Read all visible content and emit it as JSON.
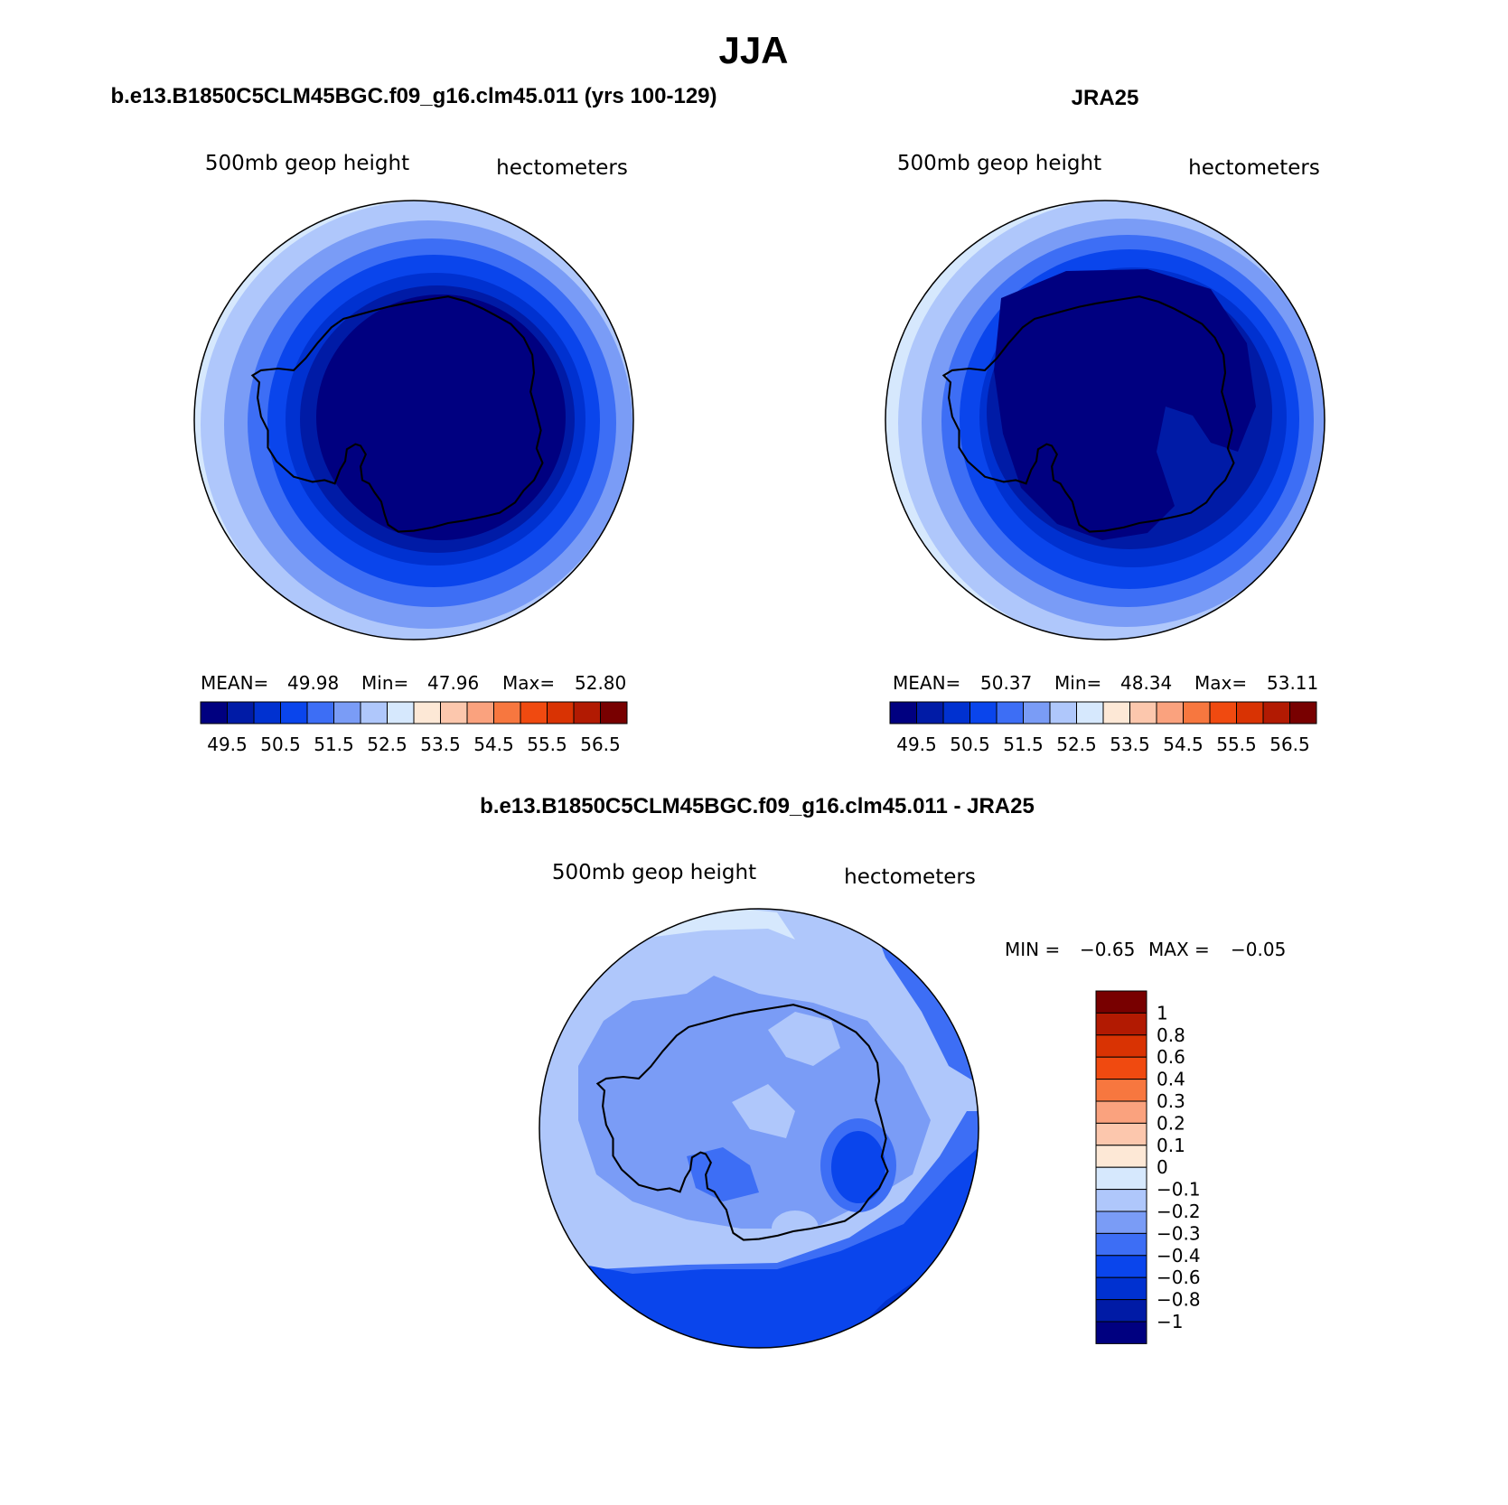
{
  "page_title": "JJA",
  "colors": {
    "abs_levels": [
      "#000080",
      "#001ba6",
      "#0031d0",
      "#0a45ec",
      "#3d6ef5",
      "#7a9cf6",
      "#afc7fb",
      "#d6e8fd",
      "#fde8d6",
      "#fcc7ad",
      "#faa27e",
      "#f7773f",
      "#f04a10",
      "#d93303",
      "#b21a02",
      "#780000"
    ],
    "diff_levels": [
      "#000080",
      "#001ba6",
      "#0031d0",
      "#0a45ec",
      "#3d6ef5",
      "#7a9cf6",
      "#afc7fb",
      "#d6e8fd",
      "#fde8d6",
      "#fcc7ad",
      "#faa27e",
      "#f7773f",
      "#f04a10",
      "#d93303",
      "#b21a02",
      "#780000"
    ],
    "coastline": "#000000"
  },
  "panels": [
    {
      "id": "model",
      "title": "b.e13.B1850C5CLM45BGC.f09_g16.clm45.011 (yrs 100-129)",
      "left_label": "500mb geop height",
      "right_label": "hectometers",
      "stats": {
        "mean_label": "MEAN=",
        "mean": "49.98",
        "min_label": "Min=",
        "min": "47.96",
        "max_label": "Max=",
        "max": "52.80"
      },
      "colorbar_ticks": [
        "49.5",
        "50.5",
        "51.5",
        "52.5",
        "53.5",
        "54.5",
        "55.5",
        "56.5"
      ]
    },
    {
      "id": "obs",
      "title": "JRA25",
      "left_label": "500mb geop height",
      "right_label": "hectometers",
      "stats": {
        "mean_label": "MEAN=",
        "mean": "50.37",
        "min_label": "Min=",
        "min": "48.34",
        "max_label": "Max=",
        "max": "53.11"
      },
      "colorbar_ticks": [
        "49.5",
        "50.5",
        "51.5",
        "52.5",
        "53.5",
        "54.5",
        "55.5",
        "56.5"
      ]
    },
    {
      "id": "diff",
      "title": "b.e13.B1850C5CLM45BGC.f09_g16.clm45.011 - JRA25",
      "left_label": "500mb geop height",
      "right_label": "hectometers",
      "minmax": {
        "min_label": "MIN =",
        "min": "−0.65",
        "max_label": "MAX =",
        "max": "−0.05"
      },
      "colorbar_ticks": [
        "1",
        "0.8",
        "0.6",
        "0.4",
        "0.3",
        "0.2",
        "0.1",
        "0",
        "−0.1",
        "−0.2",
        "−0.3",
        "−0.4",
        "−0.6",
        "−0.8",
        "−1"
      ]
    }
  ]
}
